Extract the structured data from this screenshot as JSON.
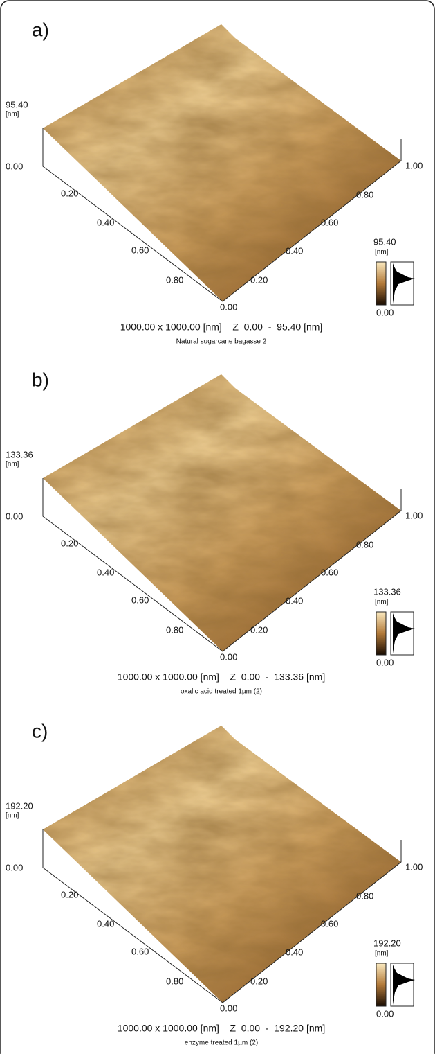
{
  "panels": [
    {
      "label": "a)",
      "z_max": "95.40",
      "z_unit": "[nm]",
      "z_min": "0.00",
      "left_ticks": [
        "0.20",
        "0.40",
        "0.60",
        "0.80"
      ],
      "right_ticks": [
        "0.00",
        "0.20",
        "0.40",
        "0.60",
        "0.80",
        "1.00"
      ],
      "colorbar": {
        "max": "95.40",
        "unit": "[nm]",
        "min": "0.00"
      },
      "footer": "1000.00 x 1000.00 [nm]    Z  0.00  -  95.40 [nm]",
      "caption": "Natural sugarcane bagasse 2"
    },
    {
      "label": "b)",
      "z_max": "133.36",
      "z_unit": "[nm]",
      "z_min": "0.00",
      "left_ticks": [
        "0.20",
        "0.40",
        "0.60",
        "0.80"
      ],
      "right_ticks": [
        "0.00",
        "0.20",
        "0.40",
        "0.60",
        "0.80",
        "1.00"
      ],
      "colorbar": {
        "max": "133.36",
        "unit": "[nm]",
        "min": "0.00"
      },
      "footer": "1000.00 x 1000.00 [nm]    Z  0.00  -  133.36 [nm]",
      "caption": "oxalic acid treated 1µm (2)"
    },
    {
      "label": "c)",
      "z_max": "192.20",
      "z_unit": "[nm]",
      "z_min": "0.00",
      "left_ticks": [
        "0.20",
        "0.40",
        "0.60",
        "0.80"
      ],
      "right_ticks": [
        "0.00",
        "0.20",
        "0.40",
        "0.60",
        "0.80",
        "1.00"
      ],
      "colorbar": {
        "max": "192.20",
        "unit": "[nm]",
        "min": "0.00"
      },
      "footer": "1000.00 x 1000.00 [nm]    Z  0.00  -  192.20 [nm]",
      "caption": "enzyme treated 1µm (2)"
    }
  ]
}
